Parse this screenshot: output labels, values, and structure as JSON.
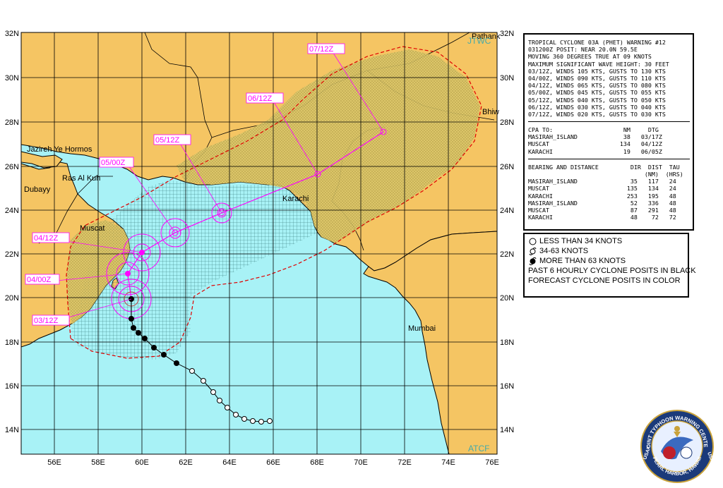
{
  "map": {
    "lat_labels": [
      "32N",
      "30N",
      "28N",
      "26N",
      "24N",
      "22N",
      "20N",
      "18N",
      "16N",
      "14N"
    ],
    "lon_labels": [
      "56E",
      "58E",
      "60E",
      "62E",
      "64E",
      "66E",
      "68E",
      "70E",
      "72E",
      "74E",
      "76E"
    ],
    "places": {
      "pathank": "Pathank",
      "bhiw": "Bhiw",
      "jazireh": "Jazireh Ye Hormos",
      "ras_al_kuh": "Ras Al Kuh",
      "dubayy": "Dubayy",
      "muscat": "Muscat",
      "karachi": "Karachi",
      "mumbai": "Mumbai"
    },
    "corner_marks": {
      "top": "JTWC",
      "bottom": "ATCF"
    },
    "forecast_labels": [
      "03/12Z",
      "04/00Z",
      "04/12Z",
      "05/00Z",
      "05/12Z",
      "06/12Z",
      "07/12Z"
    ],
    "colors": {
      "sea": "#a8f2f6",
      "land": "#f5c563",
      "forecast": "#ff00ff",
      "danger_outline": "#e00000",
      "track": "#000000"
    }
  },
  "warning": {
    "lines1": [
      "TROPICAL CYCLONE 03A (PHET) WARNING #12",
      "031200Z POSIT: NEAR 20.0N 59.5E",
      "MOVING 360 DEGREES TRUE AT 09 KNOTS",
      "MAXIMUM SIGNIFICANT WAVE HEIGHT: 30 FEET",
      "03/12Z, WINDS 105 KTS, GUSTS TO 130 KTS",
      "04/00Z, WINDS 090 KTS, GUSTS TO 110 KTS",
      "04/12Z, WINDS 065 KTS, GUSTS TO 080 KTS",
      "05/00Z, WINDS 045 KTS, GUSTS TO 055 KTS",
      "05/12Z, WINDS 040 KTS, GUSTS TO 050 KTS",
      "06/12Z, WINDS 030 KTS, GUSTS TO 040 KTS",
      "07/12Z, WINDS 020 KTS, GUSTS TO 030 KTS"
    ],
    "lines2": [
      "CPA TO:                    NM     DTG",
      "MASIRAH_ISLAND             38   03/17Z",
      "MUSCAT                    134   04/12Z",
      "KARACHI                    19   06/05Z"
    ],
    "lines3": [
      "BEARING AND DISTANCE         DIR  DIST  TAU",
      "                                 (NM)  (HRS)",
      "MASIRAH_ISLAND               35   117   24",
      "MUSCAT                      135   134   24",
      "KARACHI                     253   195   48",
      "MASIRAH_ISLAND               52   336   48",
      "MUSCAT                       87   291   48",
      "KARACHI                      48    72   72"
    ]
  },
  "legend": {
    "less34": "LESS THAN 34 KNOTS",
    "k34_63": "34-63 KNOTS",
    "more63": "MORE THAN 63 KNOTS",
    "past": "PAST 6 HOURLY CYCLONE POSITS IN BLACK",
    "forecast": "FORECAST CYCLONE POSITS IN COLOR"
  },
  "seal": {
    "top_text": "JOINT TYPHOON WARNING CENTER",
    "left_text": "USAF",
    "right_text": "USN",
    "bottom_text": "PEARL HARBOR, HAWAII"
  }
}
